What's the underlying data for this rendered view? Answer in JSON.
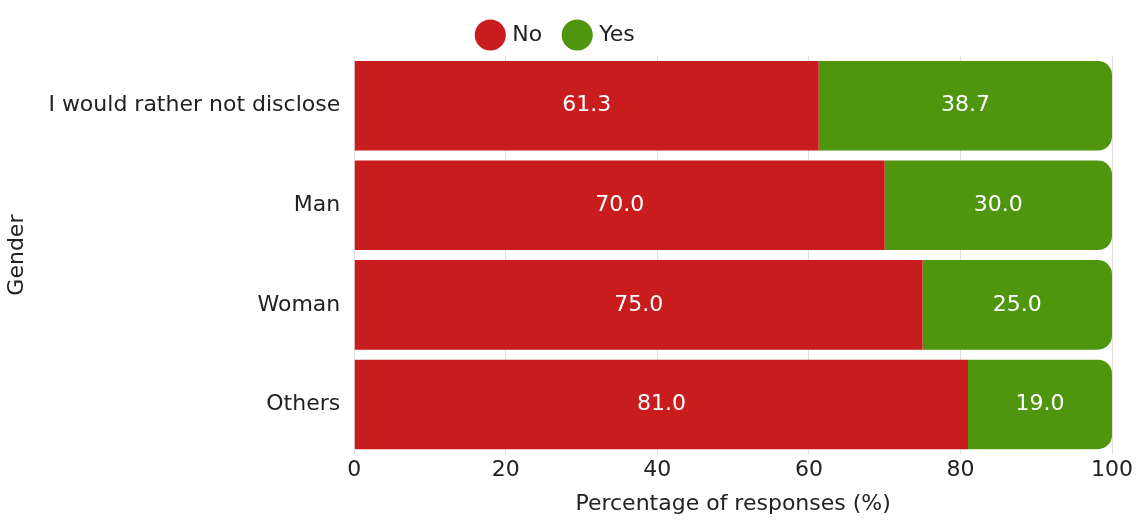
{
  "chart_data": {
    "type": "bar",
    "orientation": "horizontal",
    "stacked": true,
    "xlabel": "Percentage of responses (%)",
    "ylabel": "Gender",
    "categories": [
      "I would rather not disclose",
      "Man",
      "Woman",
      "Others"
    ],
    "series": [
      {
        "name": "No",
        "color": "#c81c1e",
        "values": [
          61.3,
          70.0,
          75.0,
          81.0
        ],
        "value_labels": [
          "61.3",
          "70.0",
          "75.0",
          "81.0"
        ]
      },
      {
        "name": "Yes",
        "color": "#4f960e",
        "values": [
          38.7,
          30.0,
          25.0,
          19.0
        ],
        "value_labels": [
          "38.7",
          "30.0",
          "25.0",
          "19.0"
        ]
      }
    ],
    "xlim": [
      0,
      100
    ],
    "xticks": [
      0,
      20,
      40,
      60,
      80,
      100
    ],
    "grid": "x",
    "legend": "top",
    "marker": "circle"
  }
}
